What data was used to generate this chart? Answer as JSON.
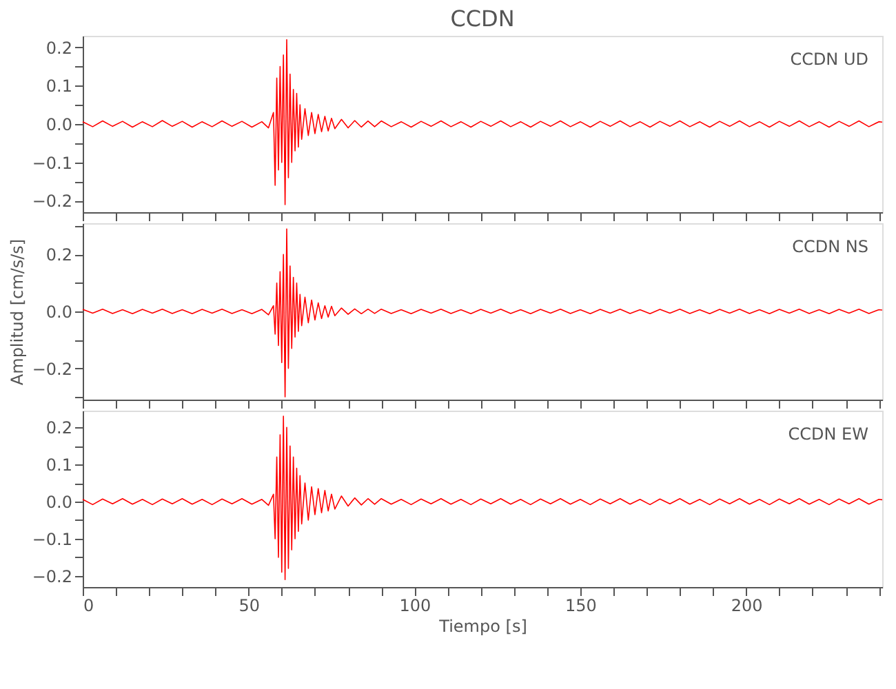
{
  "chart_data": [
    {
      "type": "line",
      "title": "CCDN",
      "annotations": [
        "CCDN   UD"
      ],
      "tick_labels": "y",
      "grid": false,
      "xlim": [
        0,
        241
      ],
      "xticks": [
        0,
        {
          "value": 10,
          "label": null
        },
        {
          "value": 20,
          "label": null
        },
        {
          "value": 30,
          "label": null
        },
        {
          "value": 40,
          "label": null
        },
        50,
        {
          "value": 60,
          "label": null
        },
        {
          "value": 70,
          "label": null
        },
        {
          "value": 80,
          "label": null
        },
        {
          "value": 90,
          "label": null
        },
        100,
        {
          "value": 110,
          "label": null
        },
        {
          "value": 120,
          "label": null
        },
        {
          "value": 130,
          "label": null
        },
        {
          "value": 140,
          "label": null
        },
        150,
        {
          "value": 160,
          "label": null
        },
        {
          "value": 170,
          "label": null
        },
        {
          "value": 180,
          "label": null
        },
        {
          "value": 190,
          "label": null
        },
        200,
        {
          "value": 210,
          "label": null
        },
        {
          "value": 220,
          "label": null
        },
        {
          "value": 230,
          "label": null
        },
        {
          "value": 240,
          "label": null
        }
      ],
      "ylim": [
        -0.23,
        0.23
      ],
      "yticks": [
        {
          "value": -0.2,
          "label": "−0.2"
        },
        {
          "value": -0.15,
          "label": null
        },
        {
          "value": -0.1,
          "label": "−0.1"
        },
        {
          "value": -0.05,
          "label": null
        },
        {
          "value": 0,
          "label": "0.0"
        },
        {
          "value": 0.05,
          "label": null
        },
        {
          "value": 0.1,
          "label": "0.1"
        },
        {
          "value": 0.15,
          "label": null
        },
        {
          "value": 0.2,
          "label": "0.2"
        }
      ],
      "x": [
        0,
        3,
        6,
        9,
        12,
        15,
        18,
        21,
        24,
        27,
        30,
        33,
        36,
        39,
        42,
        45,
        48,
        51,
        54,
        56,
        57.5,
        58,
        58.5,
        59,
        59.5,
        60,
        60.5,
        61,
        61.5,
        62,
        62.5,
        63,
        63.5,
        64,
        64.5,
        65,
        65.5,
        66,
        67,
        68,
        69,
        70,
        71,
        72,
        73,
        74,
        75,
        76,
        78,
        80,
        82,
        84,
        86,
        88,
        90,
        93,
        96,
        99,
        102,
        105,
        108,
        111,
        114,
        117,
        120,
        123,
        126,
        129,
        132,
        135,
        138,
        141,
        144,
        147,
        150,
        153,
        156,
        159,
        162,
        165,
        168,
        171,
        174,
        177,
        180,
        183,
        186,
        189,
        192,
        195,
        198,
        201,
        204,
        207,
        210,
        213,
        216,
        219,
        222,
        225,
        228,
        231,
        234,
        237,
        240,
        241
      ],
      "series": [
        {
          "color": "#ff0000",
          "values": [
            0.006,
            -0.007,
            0.008,
            -0.006,
            0.007,
            -0.008,
            0.006,
            -0.007,
            0.009,
            -0.006,
            0.007,
            -0.008,
            0.006,
            -0.007,
            0.008,
            -0.006,
            0.007,
            -0.008,
            0.006,
            -0.01,
            0.03,
            -0.16,
            0.12,
            -0.12,
            0.15,
            -0.1,
            0.18,
            -0.21,
            0.22,
            -0.14,
            0.13,
            -0.1,
            0.09,
            -0.07,
            0.08,
            -0.06,
            0.05,
            -0.04,
            0.04,
            -0.03,
            0.03,
            -0.025,
            0.025,
            -0.02,
            0.02,
            -0.018,
            0.015,
            -0.012,
            0.012,
            -0.01,
            0.009,
            -0.008,
            0.008,
            -0.007,
            0.008,
            -0.007,
            0.006,
            -0.008,
            0.007,
            -0.006,
            0.008,
            -0.007,
            0.006,
            -0.008,
            0.007,
            -0.006,
            0.008,
            -0.007,
            0.006,
            -0.008,
            0.007,
            -0.006,
            0.008,
            -0.007,
            0.006,
            -0.008,
            0.007,
            -0.006,
            0.008,
            -0.007,
            0.006,
            -0.008,
            0.007,
            -0.006,
            0.008,
            -0.007,
            0.006,
            -0.008,
            0.007,
            -0.006,
            0.008,
            -0.007,
            0.006,
            -0.008,
            0.007,
            -0.006,
            0.008,
            -0.007,
            0.006,
            -0.008,
            0.007,
            -0.006,
            0.008,
            -0.007,
            0.006,
            0.005
          ]
        }
      ]
    },
    {
      "type": "line",
      "annotations": [
        "CCDN   NS"
      ],
      "ylabel": "Amplitud  [cm/s/s]",
      "tick_labels": "y",
      "grid": false,
      "xlim": [
        0,
        241
      ],
      "xticks": [
        0,
        {
          "value": 10,
          "label": null
        },
        {
          "value": 20,
          "label": null
        },
        {
          "value": 30,
          "label": null
        },
        {
          "value": 40,
          "label": null
        },
        50,
        {
          "value": 60,
          "label": null
        },
        {
          "value": 70,
          "label": null
        },
        {
          "value": 80,
          "label": null
        },
        {
          "value": 90,
          "label": null
        },
        100,
        {
          "value": 110,
          "label": null
        },
        {
          "value": 120,
          "label": null
        },
        {
          "value": 130,
          "label": null
        },
        {
          "value": 140,
          "label": null
        },
        150,
        {
          "value": 160,
          "label": null
        },
        {
          "value": 170,
          "label": null
        },
        {
          "value": 180,
          "label": null
        },
        {
          "value": 190,
          "label": null
        },
        200,
        {
          "value": 210,
          "label": null
        },
        {
          "value": 220,
          "label": null
        },
        {
          "value": 230,
          "label": null
        },
        {
          "value": 240,
          "label": null
        }
      ],
      "ylim": [
        -0.31,
        0.31
      ],
      "yticks": [
        {
          "value": -0.3,
          "label": null
        },
        {
          "value": -0.2,
          "label": "−0.2"
        },
        {
          "value": -0.1,
          "label": null
        },
        {
          "value": 0,
          "label": "0.0"
        },
        {
          "value": 0.1,
          "label": null
        },
        {
          "value": 0.2,
          "label": "0.2"
        },
        {
          "value": 0.3,
          "label": null
        }
      ],
      "x": [
        0,
        3,
        6,
        9,
        12,
        15,
        18,
        21,
        24,
        27,
        30,
        33,
        36,
        39,
        42,
        45,
        48,
        51,
        54,
        56,
        57.5,
        58,
        58.5,
        59,
        59.5,
        60,
        60.5,
        61,
        61.5,
        62,
        62.5,
        63,
        63.5,
        64,
        64.5,
        65,
        65.5,
        66,
        67,
        68,
        69,
        70,
        71,
        72,
        73,
        74,
        75,
        76,
        78,
        80,
        82,
        84,
        86,
        88,
        90,
        93,
        96,
        99,
        102,
        105,
        108,
        111,
        114,
        117,
        120,
        123,
        126,
        129,
        132,
        135,
        138,
        141,
        144,
        147,
        150,
        153,
        156,
        159,
        162,
        165,
        168,
        171,
        174,
        177,
        180,
        183,
        186,
        189,
        192,
        195,
        198,
        201,
        204,
        207,
        210,
        213,
        216,
        219,
        222,
        225,
        228,
        231,
        234,
        237,
        240,
        241
      ],
      "series": [
        {
          "color": "#ff0000",
          "values": [
            0.007,
            -0.006,
            0.008,
            -0.007,
            0.006,
            -0.008,
            0.007,
            -0.006,
            0.008,
            -0.007,
            0.006,
            -0.008,
            0.007,
            -0.006,
            0.008,
            -0.007,
            0.006,
            -0.008,
            0.007,
            -0.012,
            0.02,
            -0.08,
            0.1,
            -0.12,
            0.14,
            -0.18,
            0.2,
            -0.3,
            0.29,
            -0.2,
            0.16,
            -0.13,
            0.12,
            -0.09,
            0.1,
            -0.07,
            0.06,
            -0.05,
            0.05,
            -0.04,
            0.04,
            -0.03,
            0.03,
            -0.025,
            0.02,
            -0.02,
            0.018,
            -0.015,
            0.012,
            -0.01,
            0.009,
            -0.008,
            0.008,
            -0.007,
            0.008,
            -0.007,
            0.006,
            -0.008,
            0.007,
            -0.006,
            0.008,
            -0.007,
            0.006,
            -0.008,
            0.007,
            -0.006,
            0.008,
            -0.007,
            0.006,
            -0.008,
            0.007,
            -0.006,
            0.008,
            -0.007,
            0.006,
            -0.008,
            0.007,
            -0.006,
            0.008,
            -0.007,
            0.006,
            -0.008,
            0.007,
            -0.006,
            0.008,
            -0.007,
            0.006,
            -0.008,
            0.007,
            -0.006,
            0.008,
            -0.007,
            0.006,
            -0.008,
            0.007,
            -0.006,
            0.008,
            -0.007,
            0.006,
            -0.008,
            0.007,
            -0.006,
            0.008,
            -0.007,
            0.006,
            0.005
          ]
        }
      ]
    },
    {
      "type": "line",
      "annotations": [
        "CCDN   EW"
      ],
      "xlabel": "Tiempo  [s]",
      "grid": false,
      "xlim": [
        0,
        241
      ],
      "xticks": [
        0,
        {
          "value": 10,
          "label": null
        },
        {
          "value": 20,
          "label": null
        },
        {
          "value": 30,
          "label": null
        },
        {
          "value": 40,
          "label": null
        },
        50,
        {
          "value": 60,
          "label": null
        },
        {
          "value": 70,
          "label": null
        },
        {
          "value": 80,
          "label": null
        },
        {
          "value": 90,
          "label": null
        },
        100,
        {
          "value": 110,
          "label": null
        },
        {
          "value": 120,
          "label": null
        },
        {
          "value": 130,
          "label": null
        },
        {
          "value": 140,
          "label": null
        },
        150,
        {
          "value": 160,
          "label": null
        },
        {
          "value": 170,
          "label": null
        },
        {
          "value": 180,
          "label": null
        },
        {
          "value": 190,
          "label": null
        },
        200,
        {
          "value": 210,
          "label": null
        },
        {
          "value": 220,
          "label": null
        },
        {
          "value": 230,
          "label": null
        },
        {
          "value": 240,
          "label": null
        }
      ],
      "ylim": [
        -0.23,
        0.245
      ],
      "yticks": [
        {
          "value": -0.2,
          "label": "−0.2"
        },
        {
          "value": -0.15,
          "label": null
        },
        {
          "value": -0.1,
          "label": "−0.1"
        },
        {
          "value": -0.05,
          "label": null
        },
        {
          "value": 0,
          "label": "0.0"
        },
        {
          "value": 0.05,
          "label": null
        },
        {
          "value": 0.1,
          "label": "0.1"
        },
        {
          "value": 0.15,
          "label": null
        },
        {
          "value": 0.2,
          "label": "0.2"
        }
      ],
      "x": [
        0,
        3,
        6,
        9,
        12,
        15,
        18,
        21,
        24,
        27,
        30,
        33,
        36,
        39,
        42,
        45,
        48,
        51,
        54,
        56,
        57.5,
        58,
        58.5,
        59,
        59.5,
        60,
        60.5,
        61,
        61.5,
        62,
        62.5,
        63,
        63.5,
        64,
        64.5,
        65,
        65.5,
        66,
        67,
        68,
        69,
        70,
        71,
        72,
        73,
        74,
        75,
        76,
        78,
        80,
        82,
        84,
        86,
        88,
        90,
        93,
        96,
        99,
        102,
        105,
        108,
        111,
        114,
        117,
        120,
        123,
        126,
        129,
        132,
        135,
        138,
        141,
        144,
        147,
        150,
        153,
        156,
        159,
        162,
        165,
        168,
        171,
        174,
        177,
        180,
        183,
        186,
        189,
        192,
        195,
        198,
        201,
        204,
        207,
        210,
        213,
        216,
        219,
        222,
        225,
        228,
        231,
        234,
        237,
        240,
        241
      ],
      "series": [
        {
          "color": "#ff0000",
          "values": [
            0.006,
            -0.008,
            0.007,
            -0.006,
            0.008,
            -0.007,
            0.006,
            -0.008,
            0.007,
            -0.006,
            0.008,
            -0.007,
            0.006,
            -0.008,
            0.007,
            -0.006,
            0.008,
            -0.007,
            0.006,
            -0.01,
            0.02,
            -0.1,
            0.12,
            -0.15,
            0.18,
            -0.19,
            0.23,
            -0.21,
            0.2,
            -0.18,
            0.15,
            -0.13,
            0.12,
            -0.1,
            0.09,
            -0.08,
            0.07,
            -0.06,
            0.05,
            -0.05,
            0.04,
            -0.035,
            0.035,
            -0.03,
            0.03,
            -0.025,
            0.02,
            -0.02,
            0.015,
            -0.012,
            0.01,
            -0.009,
            0.008,
            -0.007,
            0.008,
            -0.007,
            0.006,
            -0.008,
            0.007,
            -0.006,
            0.008,
            -0.007,
            0.006,
            -0.008,
            0.007,
            -0.006,
            0.008,
            -0.007,
            0.006,
            -0.008,
            0.007,
            -0.006,
            0.008,
            -0.007,
            0.006,
            -0.008,
            0.007,
            -0.006,
            0.008,
            -0.007,
            0.006,
            -0.008,
            0.007,
            -0.006,
            0.008,
            -0.007,
            0.006,
            -0.008,
            0.007,
            -0.006,
            0.008,
            -0.007,
            0.006,
            -0.008,
            0.007,
            -0.006,
            0.008,
            -0.007,
            0.006,
            -0.008,
            0.007,
            -0.006,
            0.008,
            -0.007,
            0.006,
            0.005
          ]
        }
      ]
    }
  ]
}
